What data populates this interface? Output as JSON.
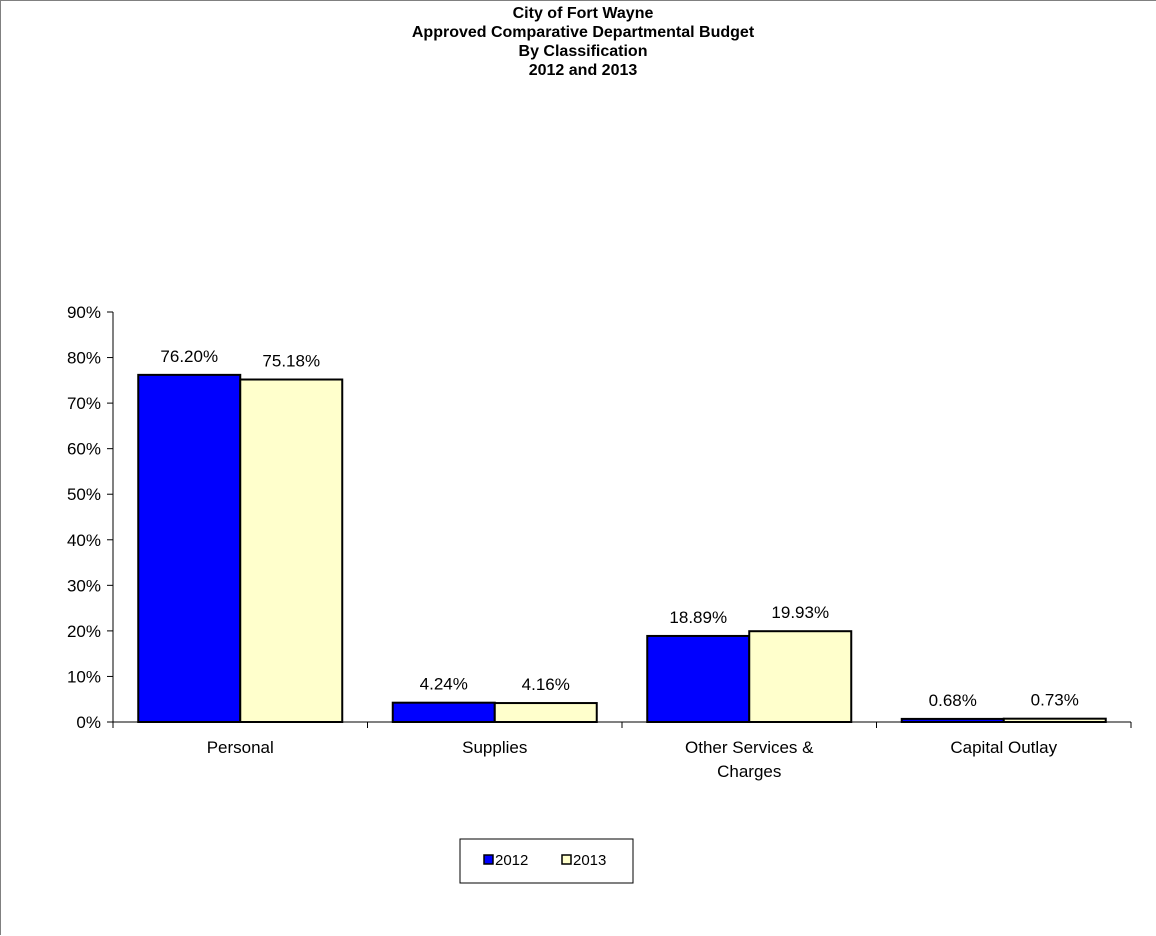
{
  "chart_data": {
    "type": "bar",
    "title_lines": [
      "City of Fort Wayne",
      "Approved Comparative Departmental Budget",
      "By Classification",
      "2012 and 2013"
    ],
    "categories": [
      [
        "Personal"
      ],
      [
        "Supplies"
      ],
      [
        "Other Services &",
        "Charges"
      ],
      [
        "Capital Outlay"
      ]
    ],
    "series": [
      {
        "name": "2012",
        "values": [
          76.2,
          4.24,
          18.89,
          0.68
        ],
        "labels": [
          "76.20%",
          "4.24%",
          "18.89%",
          "0.68%"
        ],
        "color": "#0000FF"
      },
      {
        "name": "2013",
        "values": [
          75.18,
          4.16,
          19.93,
          0.73
        ],
        "labels": [
          "75.18%",
          "4.16%",
          "19.93%",
          "0.73%"
        ],
        "color": "#FFFFCC"
      }
    ],
    "ylim": [
      0,
      90
    ],
    "yticks": [
      0,
      10,
      20,
      30,
      40,
      50,
      60,
      70,
      80,
      90
    ],
    "ytick_labels": [
      "0%",
      "10%",
      "20%",
      "30%",
      "40%",
      "50%",
      "60%",
      "70%",
      "80%",
      "90%"
    ],
    "xlabel": "",
    "ylabel": "",
    "grid": false,
    "legend_position": "bottom"
  }
}
